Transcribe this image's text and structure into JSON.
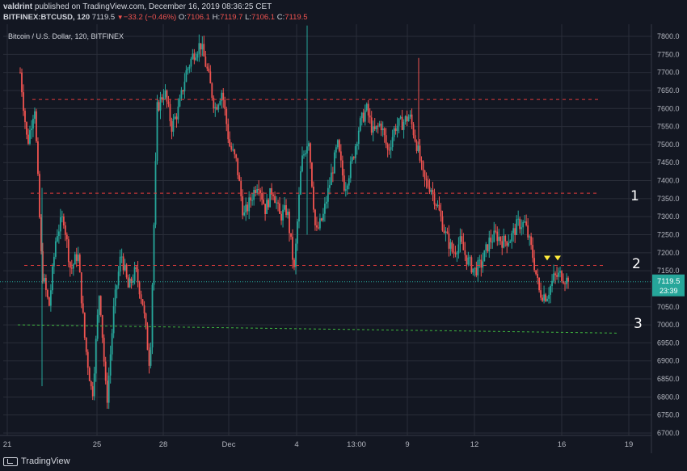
{
  "header": {
    "author": "valdrint",
    "published": "published on TradingView.com, December 16, 2019 08:36:25 CET",
    "symbol": "BITFINEX:BTCUSD, 120",
    "last": "7119.5",
    "change": "−33.2 (−0.46%)",
    "o_label": "O:",
    "o_val": "7106.1",
    "h_label": "H:",
    "h_val": "7119.7",
    "l_label": "L:",
    "l_val": "7106.1",
    "c_label": "C:",
    "c_val": "7119.5"
  },
  "chart_title": "Bitcoin / U.S. Dollar, 120, BITFINEX",
  "footer": {
    "brand": "TradingView"
  },
  "price_label": {
    "value": "7119.5",
    "countdown": "23:39"
  },
  "markers": [
    "1",
    "2",
    "3"
  ],
  "colors": {
    "up": "#26a69a",
    "down": "#ef5350",
    "background": "#131722",
    "grid": "#2a2e39",
    "resistance": "#e03b3b",
    "support": "#3fb63f",
    "signal": "#ffeb3b"
  },
  "chart_data": {
    "type": "candlestick",
    "interval": "120",
    "y_ticks": [
      6700,
      6750,
      6800,
      6850,
      6900,
      6950,
      7000,
      7050,
      7100,
      7150,
      7200,
      7250,
      7300,
      7350,
      7400,
      7450,
      7500,
      7550,
      7600,
      7650,
      7700,
      7750,
      7800
    ],
    "ylim": [
      6700,
      7830
    ],
    "x_tick_labels": [
      "21",
      "25",
      "28",
      "Dec",
      "4",
      "13:00",
      "9",
      "12",
      "16",
      "19"
    ],
    "close_path": [
      7700,
      7500,
      7610,
      7150,
      7050,
      7250,
      7300,
      7150,
      7200,
      6950,
      6800,
      7100,
      6780,
      7050,
      7200,
      7100,
      7150,
      7060,
      6880,
      7600,
      7650,
      7550,
      7600,
      7700,
      7750,
      7780,
      7700,
      7600,
      7650,
      7500,
      7450,
      7300,
      7350,
      7400,
      7320,
      7380,
      7300,
      7320,
      7150,
      7450,
      7520,
      7250,
      7300,
      7400,
      7500,
      7380,
      7450,
      7550,
      7600,
      7530,
      7560,
      7480,
      7550,
      7560,
      7580,
      7500,
      7400,
      7380,
      7320,
      7250,
      7200,
      7230,
      7180,
      7150,
      7170,
      7230,
      7250,
      7230,
      7240,
      7280,
      7280,
      7200,
      7090,
      7080,
      7130,
      7140,
      7119.5
    ],
    "levels": [
      {
        "label": "1",
        "price": 7625,
        "style": "dashed",
        "color": "red"
      },
      {
        "label": "1",
        "price": 7365,
        "style": "dashed",
        "color": "red"
      },
      {
        "label": "2",
        "price": 7165,
        "style": "dashed",
        "color": "red"
      },
      {
        "label": "3",
        "price": 6995,
        "style": "dashed",
        "color": "green"
      }
    ],
    "last_price": 7119.5
  }
}
